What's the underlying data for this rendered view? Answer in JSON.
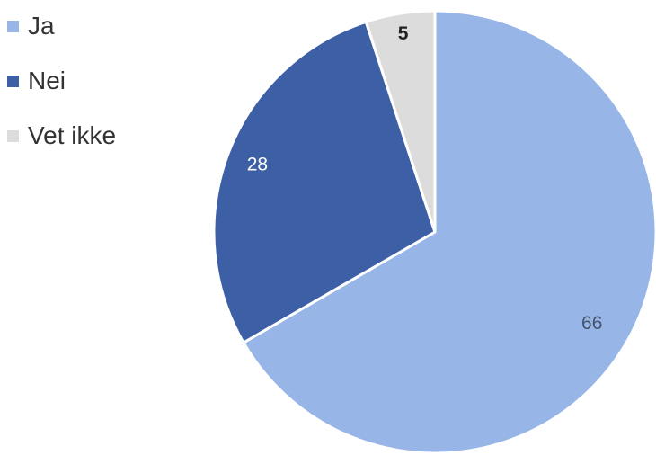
{
  "chart_data": {
    "type": "pie",
    "categories": [
      "Ja",
      "Nei",
      "Vet ikke"
    ],
    "values": [
      66,
      28,
      5
    ],
    "data_labels": [
      "66",
      "28",
      "5"
    ],
    "colors": [
      "#97b5e7",
      "#3d5fa6",
      "#dcdcdc"
    ],
    "label_colors": [
      "#44546a",
      "#ffffff",
      "#222222"
    ],
    "legend_position": "top-left",
    "start_angle": "top, clockwise"
  }
}
